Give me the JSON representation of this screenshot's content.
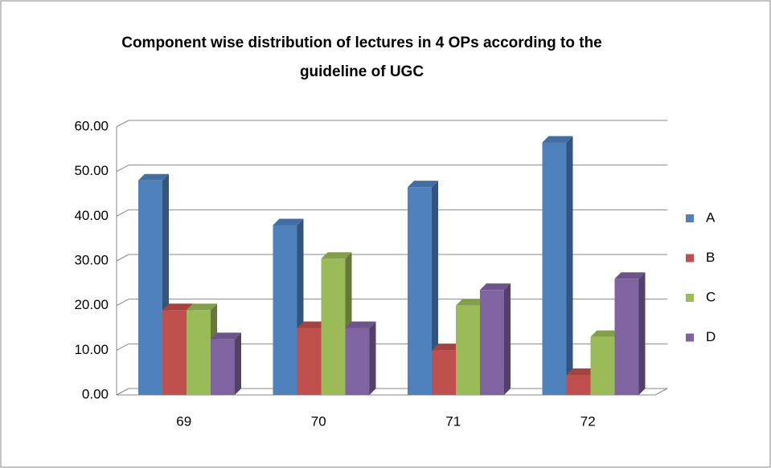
{
  "chart_data": {
    "type": "bar3d",
    "title": "Component wise distribution of lectures in 4 OPs according to the guideline of UGC",
    "categories": [
      "69",
      "70",
      "71",
      "72"
    ],
    "series": [
      {
        "name": "A",
        "color": "#4f81bd",
        "values": [
          48,
          38,
          46.5,
          56.5
        ]
      },
      {
        "name": "B",
        "color": "#c0504d",
        "values": [
          19,
          15,
          10,
          4.5
        ]
      },
      {
        "name": "C",
        "color": "#9bbb59",
        "values": [
          19,
          30.5,
          20,
          13
        ]
      },
      {
        "name": "D",
        "color": "#8064a2",
        "values": [
          12.5,
          15,
          23.5,
          26
        ]
      }
    ],
    "ylim": [
      0,
      60
    ],
    "yticks": [
      {
        "value": 0,
        "label": "0.00"
      },
      {
        "value": 10,
        "label": "10.00"
      },
      {
        "value": 20,
        "label": "20.00"
      },
      {
        "value": 30,
        "label": "30.00"
      },
      {
        "value": 40,
        "label": "40.00"
      },
      {
        "value": 50,
        "label": "50.00"
      },
      {
        "value": 60,
        "label": "60.00"
      }
    ],
    "grid": true,
    "legend": "right"
  }
}
